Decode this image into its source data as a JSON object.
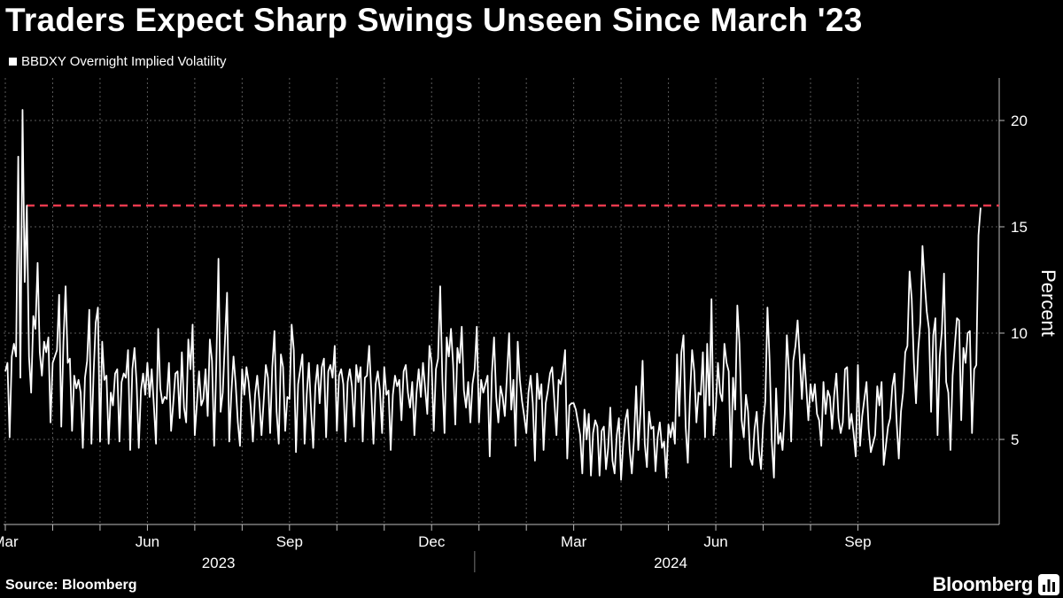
{
  "title": "Traders Expect Sharp Swings Unseen Since March '23",
  "source": "Source: Bloomberg",
  "brand": "Bloomberg",
  "chart_data": {
    "type": "line",
    "legend": [
      "BBDXY Overnight Implied Volatility"
    ],
    "ylabel": "Percent",
    "ylim": [
      1,
      22
    ],
    "yticks": [
      5,
      10,
      15,
      20
    ],
    "reference_line": {
      "value": 16.0,
      "color": "#e8394d",
      "style": "dashed"
    },
    "x_month_ticks": [
      {
        "label": "Mar",
        "index": 0
      },
      {
        "label": "",
        "index": 22
      },
      {
        "label": "",
        "index": 44
      },
      {
        "label": "Jun",
        "index": 66
      },
      {
        "label": "",
        "index": 88
      },
      {
        "label": "",
        "index": 110
      },
      {
        "label": "Sep",
        "index": 132
      },
      {
        "label": "",
        "index": 154
      },
      {
        "label": "",
        "index": 176
      },
      {
        "label": "Dec",
        "index": 198
      },
      {
        "label": "",
        "index": 220
      },
      {
        "label": "",
        "index": 242
      },
      {
        "label": "Mar",
        "index": 264
      },
      {
        "label": "",
        "index": 286
      },
      {
        "label": "",
        "index": 308
      },
      {
        "label": "Jun",
        "index": 330
      },
      {
        "label": "",
        "index": 352
      },
      {
        "label": "",
        "index": 374
      },
      {
        "label": "Sep",
        "index": 396
      }
    ],
    "x_year_labels": [
      {
        "label": "2023",
        "center_index": 99
      },
      {
        "label": "2024",
        "center_index": 309
      }
    ],
    "year_divider_index": 218,
    "series": [
      {
        "name": "BBDXY Overnight Implied Volatility",
        "color": "#ffffff",
        "values": [
          8.2,
          8.6,
          5.1,
          8.9,
          9.5,
          8.9,
          18.3,
          7.9,
          20.5,
          12.4,
          16.0,
          8.9,
          7.2,
          10.8,
          10.2,
          13.3,
          9.1,
          8.0,
          9.6,
          9.1,
          9.8,
          5.8,
          8.6,
          8.9,
          9.2,
          11.8,
          5.6,
          9.6,
          12.2,
          8.6,
          8.8,
          5.4,
          8.0,
          7.4,
          7.8,
          7.2,
          4.6,
          7.9,
          8.7,
          11.1,
          4.8,
          8.1,
          10.5,
          11.2,
          4.9,
          9.6,
          7.8,
          8.0,
          4.8,
          7.2,
          6.6,
          8.1,
          8.3,
          4.9,
          7.7,
          8.1,
          7.9,
          9.2,
          4.5,
          8.3,
          9.3,
          7.6,
          4.6,
          7.3,
          8.1,
          7.1,
          8.6,
          7.0,
          8.3,
          6.6,
          4.8,
          10.2,
          7.4,
          6.7,
          7.0,
          6.9,
          8.6,
          5.4,
          6.7,
          8.1,
          8.2,
          6.0,
          9.1,
          6.5,
          5.8,
          9.7,
          8.3,
          10.4,
          5.2,
          6.7,
          8.2,
          6.6,
          6.9,
          8.3,
          6.1,
          9.7,
          8.7,
          4.7,
          8.5,
          13.5,
          6.3,
          7.2,
          9.6,
          11.9,
          4.9,
          7.2,
          8.9,
          7.6,
          5.8,
          4.7,
          8.3,
          7.1,
          8.4,
          7.7,
          6.5,
          4.9,
          7.1,
          8.0,
          6.8,
          5.2,
          6.8,
          8.5,
          7.9,
          5.3,
          8.4,
          10.1,
          6.3,
          4.8,
          9.0,
          8.4,
          5.4,
          7.0,
          6.9,
          10.4,
          9.2,
          4.4,
          7.6,
          8.3,
          9.0,
          4.8,
          7.1,
          8.6,
          6.4,
          4.6,
          7.5,
          8.5,
          6.7,
          8.4,
          8.8,
          5.1,
          8.2,
          8.5,
          7.9,
          9.4,
          5.4,
          8.0,
          8.3,
          7.6,
          4.9,
          7.7,
          8.3,
          7.5,
          5.6,
          8.5,
          7.7,
          8.4,
          4.9,
          7.9,
          8.0,
          9.4,
          7.2,
          4.8,
          7.6,
          8.2,
          7.3,
          5.3,
          8.4,
          7.1,
          7.3,
          4.5,
          7.1,
          8.0,
          7.5,
          7.8,
          5.9,
          8.2,
          8.5,
          7.2,
          6.5,
          7.7,
          5.2,
          7.2,
          8.3,
          7.0,
          8.6,
          7.4,
          6.2,
          9.4,
          8.6,
          5.4,
          8.3,
          8.8,
          12.2,
          7.8,
          5.3,
          9.8,
          8.9,
          10.2,
          8.5,
          5.7,
          9.3,
          8.6,
          10.3,
          7.3,
          6.5,
          7.7,
          5.8,
          7.6,
          8.3,
          10.3,
          5.8,
          7.8,
          7.2,
          7.6,
          8.0,
          4.2,
          8.1,
          9.8,
          7.0,
          5.8,
          7.5,
          7.0,
          6.1,
          8.0,
          10.0,
          6.4,
          7.8,
          4.7,
          9.6,
          7.8,
          6.8,
          6.1,
          5.3,
          7.2,
          8.0,
          6.7,
          4.0,
          8.1,
          6.9,
          7.6,
          4.5,
          6.7,
          7.3,
          8.1,
          8.4,
          6.8,
          5.2,
          7.8,
          7.6,
          8.2,
          9.2,
          4.1,
          6.6,
          6.7,
          6.7,
          6.4,
          5.8,
          5.2,
          3.4,
          6.4,
          5.0,
          6.2,
          3.3,
          5.3,
          5.9,
          5.6,
          3.3,
          5.4,
          5.6,
          3.6,
          4.6,
          6.5,
          4.0,
          3.4,
          5.2,
          6.0,
          3.1,
          4.8,
          5.9,
          6.4,
          4.5,
          3.4,
          5.0,
          7.5,
          4.5,
          6.3,
          8.7,
          4.8,
          3.7,
          6.3,
          5.5,
          5.6,
          3.5,
          5.1,
          5.8,
          4.6,
          4.9,
          3.2,
          5.7,
          5.1,
          5.8,
          4.8,
          9.0,
          6.1,
          9.1,
          9.9,
          5.6,
          3.9,
          7.0,
          9.2,
          8.2,
          5.8,
          7.2,
          7.1,
          9.1,
          5.1,
          9.5,
          6.6,
          11.6,
          5.2,
          6.5,
          8.6,
          7.2,
          6.8,
          9.5,
          8.6,
          8.2,
          3.7,
          7.9,
          6.4,
          11.3,
          9.5,
          5.9,
          5.1,
          7.1,
          6.3,
          4.1,
          3.8,
          5.5,
          6.3,
          4.5,
          3.6,
          5.7,
          6.8,
          11.2,
          8.7,
          4.9,
          3.2,
          7.4,
          4.8,
          5.3,
          4.5,
          6.2,
          9.9,
          8.2,
          4.9,
          8.7,
          9.4,
          10.6,
          8.8,
          6.9,
          9.0,
          7.5,
          5.9,
          7.6,
          6.8,
          7.6,
          6.2,
          5.9,
          4.7,
          7.7,
          6.2,
          7.3,
          7.0,
          5.5,
          7.1,
          8.1,
          6.0,
          5.3,
          5.8,
          8.3,
          8.4,
          5.5,
          6.2,
          5.3,
          4.2,
          8.5,
          4.7,
          6.1,
          6.9,
          7.7,
          5.5,
          4.4,
          4.8,
          5.2,
          7.5,
          6.6,
          7.7,
          3.8,
          4.7,
          5.6,
          6.0,
          7.5,
          8.1,
          5.8,
          4.1,
          6.3,
          7.2,
          9.1,
          9.4,
          12.9,
          11.6,
          8.6,
          6.7,
          9.2,
          10.5,
          14.1,
          12.4,
          11.0,
          10.2,
          6.3,
          9.9,
          10.7,
          5.2,
          8.9,
          10.1,
          12.8,
          7.7,
          7.2,
          4.5,
          8.0,
          9.4,
          10.7,
          10.6,
          5.9,
          9.3,
          8.6,
          10.0,
          10.1,
          5.3,
          8.3,
          8.5,
          14.6,
          15.9
        ]
      }
    ]
  }
}
